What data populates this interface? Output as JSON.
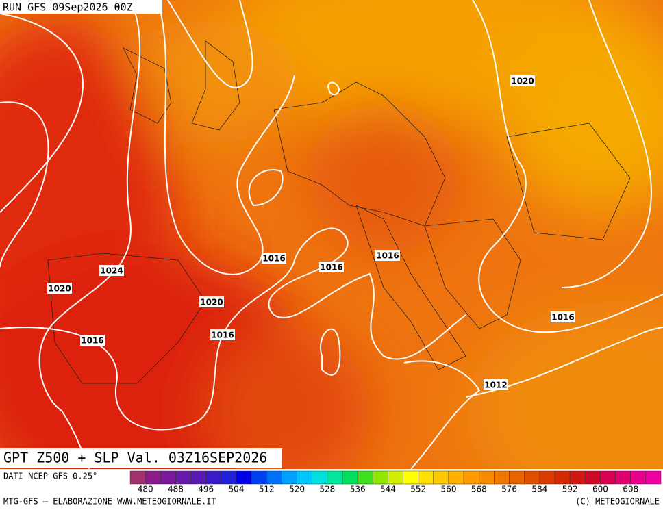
{
  "header": {
    "run": "RUN GFS 09Sep2026 00Z"
  },
  "map": {
    "title": "GPT Z500 + SLP Val. 03Z16SEP2026",
    "isobar_labels": [
      1020,
      1024,
      1020,
      1016,
      1020,
      1016,
      1016,
      1016,
      1016,
      1016,
      1012
    ]
  },
  "legend": {
    "source": "DATI NCEP GFS 0.25°",
    "ticks": [
      480,
      488,
      496,
      504,
      512,
      520,
      528,
      536,
      544,
      552,
      560,
      568,
      576,
      584,
      592,
      600,
      608
    ],
    "colors": [
      "#a0306e",
      "#8b1a8b",
      "#7a1a9a",
      "#6a1aaa",
      "#5a1ab8",
      "#3a1ac8",
      "#2020d8",
      "#0000e8",
      "#0040f0",
      "#0070f8",
      "#00a0ff",
      "#00c8ff",
      "#00e0e0",
      "#00e8a0",
      "#00e060",
      "#40e020",
      "#90e800",
      "#d0f000",
      "#ffff00",
      "#ffe000",
      "#ffc800",
      "#ffb000",
      "#ff9a00",
      "#f88a00",
      "#f07800",
      "#e86400",
      "#e05000",
      "#d83c00",
      "#d42800",
      "#d01810",
      "#d00828",
      "#d80050",
      "#e00070",
      "#e8008c",
      "#f000a0"
    ]
  },
  "footer": {
    "left": "MTG-GFS — ELABORAZIONE WWW.METEOGIORNALE.IT",
    "right": "(C) METEOGIORNALE"
  }
}
